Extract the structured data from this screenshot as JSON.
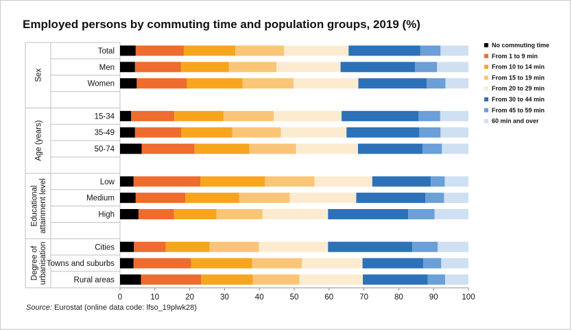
{
  "title": "Employed persons by commuting time and population groups, 2019 (%)",
  "source": {
    "label": "Source:",
    "text": "Eurostat (online data code: lfso_19plwk28)"
  },
  "colors": [
    "#000000",
    "#ed6c2e",
    "#f7a51e",
    "#fbc577",
    "#fdebd0",
    "#2d71b8",
    "#6a9fd8",
    "#cfe0f3"
  ],
  "chart_data": {
    "type": "bar",
    "orientation": "horizontal",
    "stacked": true,
    "xlim": [
      0,
      100
    ],
    "xticks": [
      "0",
      "10",
      "20",
      "30",
      "40",
      "50",
      "60",
      "70",
      "80",
      "90",
      "100"
    ],
    "grid": false,
    "legend_position": "right",
    "groups": [
      {
        "label": "Sex",
        "label_lines": [
          "Sex"
        ],
        "categories": [
          "Total",
          "Men",
          "Women"
        ]
      },
      {
        "label": "Age (years)",
        "label_lines": [
          "Age (years)"
        ],
        "categories": [
          "15-34",
          "35-49",
          "50-74"
        ]
      },
      {
        "label": "Educational attainment level",
        "label_lines": [
          "Educational",
          "attainment level"
        ],
        "categories": [
          "Low",
          "Medium",
          "High"
        ]
      },
      {
        "label": "Degree of urbanisation",
        "label_lines": [
          "Degree of",
          "urbanisation"
        ],
        "categories": [
          "Cities",
          "Towns and suburbs",
          "Rural areas"
        ]
      }
    ],
    "categories": [
      "Total",
      "Men",
      "Women",
      "15-34",
      "35-49",
      "50-74",
      "Low",
      "Medium",
      "High",
      "Cities",
      "Towns and suburbs",
      "Rural areas"
    ],
    "series": [
      {
        "name": "No commuting time",
        "values": [
          4.5,
          4.3,
          4.8,
          3.2,
          4.3,
          6.2,
          3.9,
          4.5,
          5.3,
          4.0,
          3.9,
          6.0
        ]
      },
      {
        "name": "From 1 to 9 min",
        "values": [
          13.8,
          13.2,
          14.4,
          12.4,
          13.3,
          15.2,
          19.2,
          14.2,
          10.2,
          9.1,
          16.5,
          17.3
        ]
      },
      {
        "name": "From 10 to 14 min",
        "values": [
          14.8,
          13.7,
          16.0,
          14.1,
          14.6,
          15.7,
          18.5,
          15.5,
          12.2,
          12.6,
          17.5,
          14.8
        ]
      },
      {
        "name": "From 15 to 19 min",
        "values": [
          14.0,
          13.7,
          14.6,
          14.4,
          14.0,
          13.4,
          14.2,
          14.5,
          13.2,
          14.2,
          14.3,
          13.4
        ]
      },
      {
        "name": "From 20 to 29 min",
        "values": [
          18.5,
          18.4,
          18.6,
          19.5,
          18.8,
          17.8,
          16.6,
          19.1,
          18.8,
          19.8,
          17.4,
          18.2
        ]
      },
      {
        "name": "From 30 to 44 min",
        "values": [
          20.6,
          21.4,
          19.6,
          22.1,
          20.9,
          18.5,
          16.8,
          19.8,
          23.0,
          24.2,
          17.4,
          18.6
        ]
      },
      {
        "name": "From 45 to 59 min",
        "values": [
          5.8,
          6.3,
          5.4,
          6.2,
          6.1,
          5.6,
          4.0,
          5.4,
          7.6,
          7.3,
          5.2,
          5.0
        ]
      },
      {
        "name": "60 min and over",
        "values": [
          8.0,
          9.0,
          6.6,
          8.1,
          8.0,
          7.6,
          6.8,
          7.0,
          9.7,
          8.8,
          7.8,
          6.7
        ]
      }
    ]
  }
}
